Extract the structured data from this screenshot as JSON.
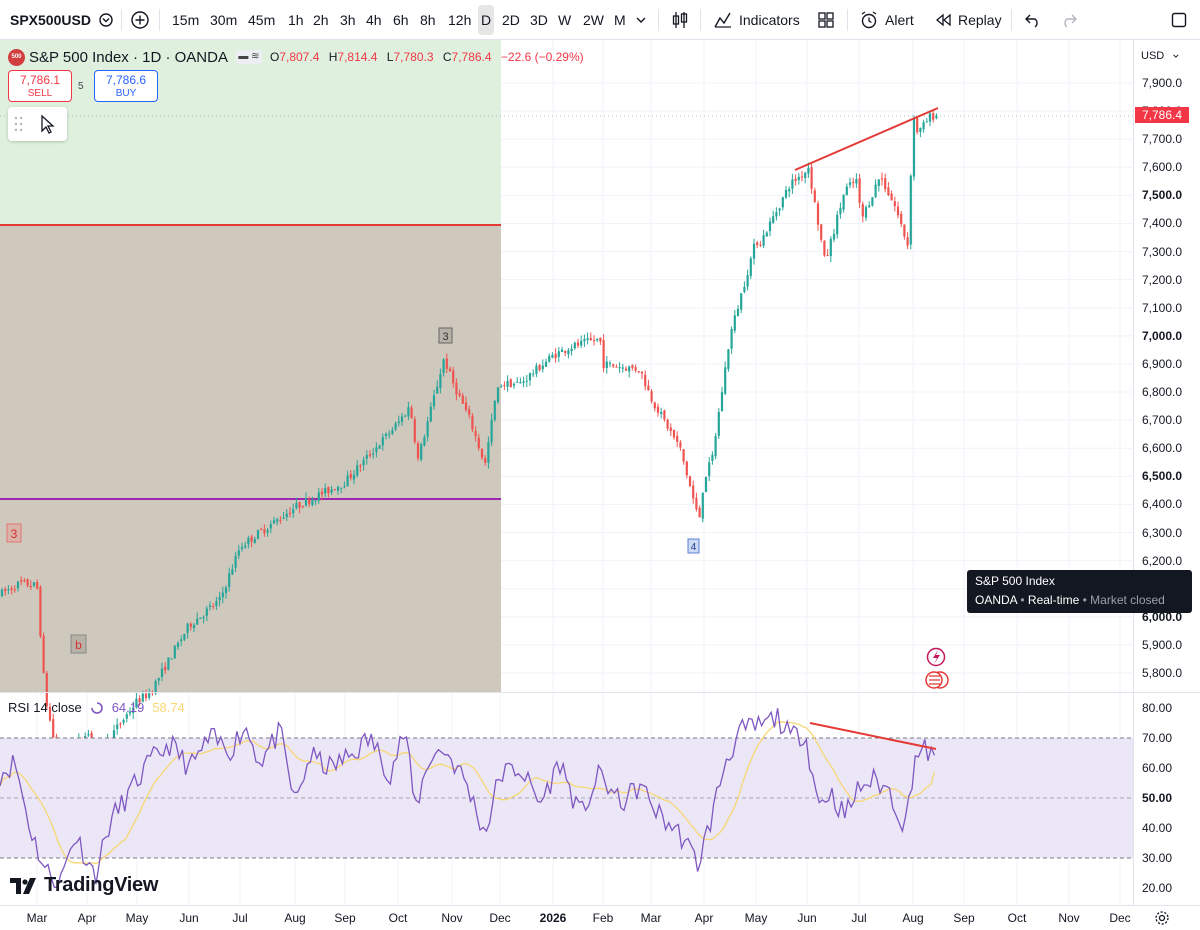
{
  "toolbar": {
    "symbol": "SPX500USD",
    "timeframes": [
      "15m",
      "30m",
      "45m",
      "1h",
      "2h",
      "3h",
      "4h",
      "6h",
      "8h",
      "12h",
      "D",
      "2D",
      "3D",
      "W",
      "2W",
      "M"
    ],
    "active_timeframe": "D",
    "indicators_label": "Indicators",
    "alert_label": "Alert",
    "replay_label": "Replay"
  },
  "legend": {
    "title": "S&P 500 Index · 1D · OANDA",
    "logo_text": "500",
    "open_label": "O",
    "open": "7,807.4",
    "high_label": "H",
    "high": "7,814.4",
    "low_label": "L",
    "low": "7,780.3",
    "close_label": "C",
    "close": "7,786.4",
    "change": "−22.6 (−0.29%)"
  },
  "trade": {
    "sell_price": "7,786.1",
    "sell_label": "SELL",
    "buy_price": "7,786.6",
    "buy_label": "BUY",
    "spread": "5"
  },
  "price_axis": {
    "currency": "USD",
    "ticks": [
      "7,900.0",
      "7,800.0",
      "7,700.0",
      "7,600.0",
      "7,500.0",
      "7,400.0",
      "7,300.0",
      "7,200.0",
      "7,100.0",
      "7,000.0",
      "6,900.0",
      "6,800.0",
      "6,700.0",
      "6,600.0",
      "6,500.0",
      "6,400.0",
      "6,300.0",
      "6,200.0",
      "6,100.0",
      "6,000.0",
      "5,900.0",
      "5,800.0"
    ],
    "bold_ticks": [
      "7,500.0",
      "7,000.0",
      "6,500.0",
      "6,000.0"
    ],
    "last_price": "7,786.4"
  },
  "tooltip": {
    "line1": "S&P 500 Index",
    "source": "OANDA",
    "feed": "Real-time",
    "status": "Market closed"
  },
  "annotations": {
    "wave_3_left": "3",
    "wave_b": "b",
    "wave_3_top": "3",
    "wave_4": "4"
  },
  "rsi": {
    "label": "RSI 14 close",
    "value": "64.19",
    "ma_value": "58.74",
    "ticks": [
      "80.00",
      "70.00",
      "60.00",
      "50.00",
      "40.00",
      "30.00",
      "20.00"
    ],
    "bold_ticks": [
      "50.00"
    ]
  },
  "time_axis": {
    "labels": [
      "Mar",
      "Apr",
      "May",
      "Jun",
      "Jul",
      "Aug",
      "Sep",
      "Oct",
      "Nov",
      "Dec",
      "2026",
      "Feb",
      "Mar",
      "Apr",
      "May",
      "Jun",
      "Jul",
      "Aug",
      "Sep",
      "Oct",
      "Nov",
      "Dec"
    ],
    "bold_labels": [
      "2026"
    ]
  },
  "branding": {
    "name": "TradingView"
  },
  "colors": {
    "up": "#26a69a",
    "down": "#ef5350",
    "rsi": "#7e57c2",
    "rsi_ma": "#f7d774",
    "trendline": "#e53935",
    "green_zone": "#dff1de",
    "tan_zone": "#cfc8bd",
    "level_red": "#e53935",
    "level_purple": "#9c27b0"
  },
  "chart_data": [
    {
      "type": "candlestick",
      "title": "S&P 500 Index · 1D · OANDA",
      "ylabel": "USD",
      "ylim": [
        5750,
        7950
      ],
      "x_labels": [
        "Mar",
        "Apr",
        "May",
        "Jun",
        "Jul",
        "Aug",
        "Sep",
        "Oct",
        "Nov",
        "Dec",
        "2026",
        "Feb",
        "Mar",
        "Apr",
        "May",
        "Jun",
        "Jul",
        "Aug",
        "Sep",
        "Oct",
        "Nov",
        "Dec"
      ],
      "anchors": [
        {
          "x": "Mar",
          "close": 6110
        },
        {
          "x": "Apr",
          "close": 5600
        },
        {
          "x": "May",
          "close": 5700
        },
        {
          "x": "Jun",
          "close": 5970
        },
        {
          "x": "Jul",
          "close": 6250
        },
        {
          "x": "Aug",
          "close": 6390
        },
        {
          "x": "Sep",
          "close": 6480
        },
        {
          "x": "Oct",
          "close": 6690
        },
        {
          "x": "Nov",
          "close": 6840
        },
        {
          "x": "Dec",
          "close": 6830
        },
        {
          "x": "2026",
          "close": 6930
        },
        {
          "x": "Feb",
          "close": 6900
        },
        {
          "x": "Mar",
          "close": 6780
        },
        {
          "x": "Apr",
          "close": 6490
        },
        {
          "x": "May",
          "close": 7340
        },
        {
          "x": "Jun",
          "close": 7590
        },
        {
          "x": "Jul",
          "close": 7560
        },
        {
          "x": "Aug",
          "close": 7786.4
        }
      ],
      "last": {
        "open": 7807.4,
        "high": 7814.4,
        "low": 7780.3,
        "close": 7786.4
      }
    },
    {
      "type": "line",
      "title": "RSI 14 close",
      "series": [
        {
          "name": "RSI 14 close",
          "last": 64.19
        },
        {
          "name": "",
          "last": 58.74
        }
      ],
      "ylim": [
        15,
        85
      ],
      "levels": [
        70,
        50,
        30
      ]
    }
  ]
}
